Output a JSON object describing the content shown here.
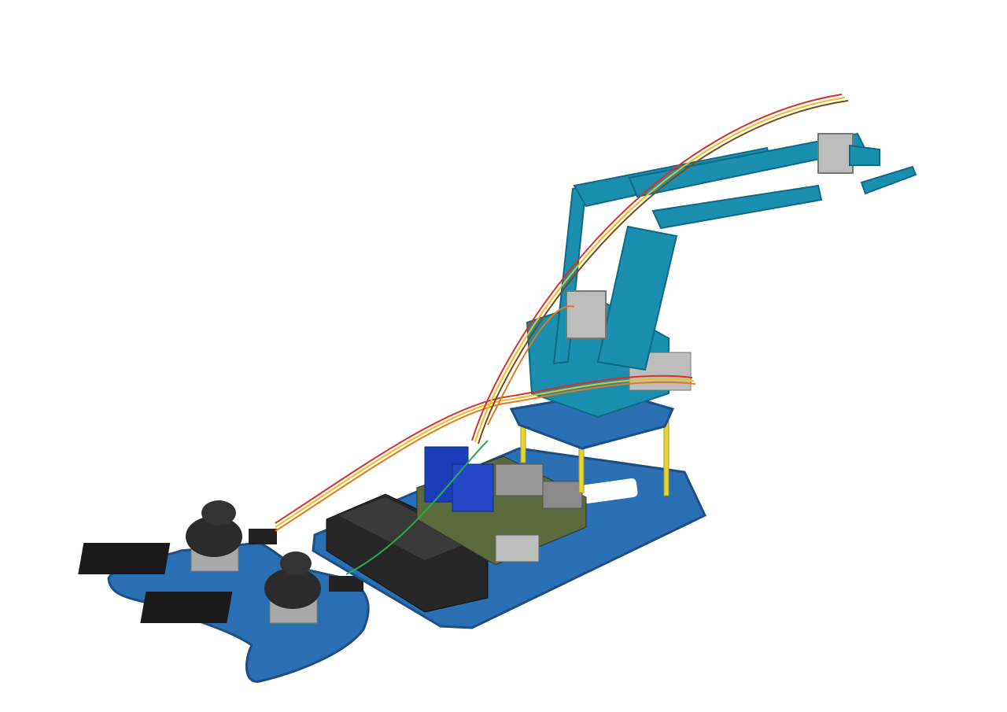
{
  "scene": {
    "background": "#ffffff",
    "colors": {
      "base_plate": "#2a6fb4",
      "base_plate_edge": "#1d4f86",
      "arm_teal": "#1a8fb0",
      "arm_teal_dark": "#0f6a86",
      "servo_grey": "#bdbdbd",
      "battery_black": "#2a2a2a",
      "shield_blue": "#1b3fb8",
      "standoff_yellow": "#e6d437",
      "joystick_black": "#2b2b2b",
      "wire_red": "#d9302a",
      "wire_yellow": "#e8c21a",
      "wire_orange": "#e07a1a",
      "wire_green": "#2aa84a",
      "wire_brown": "#7a4a1a"
    }
  }
}
